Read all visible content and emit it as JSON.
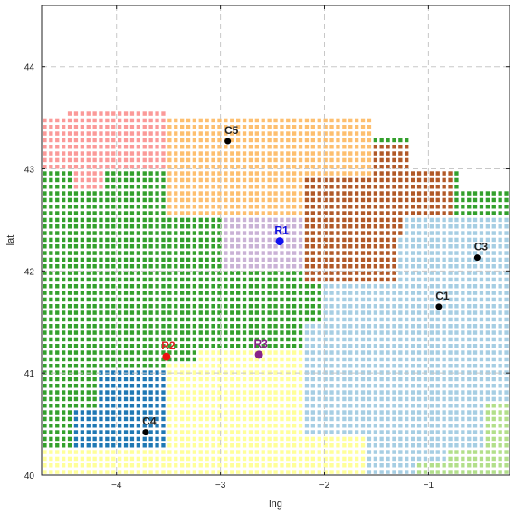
{
  "chart_data": {
    "type": "scatter",
    "title": "",
    "xlabel": "lng",
    "ylabel": "lat",
    "xlim": [
      -4.72,
      -0.22
    ],
    "ylim": [
      40.0,
      44.6
    ],
    "xticks": [
      -4,
      -3,
      -2,
      -1
    ],
    "yticks": [
      40,
      41,
      42,
      43,
      44
    ],
    "grid": true,
    "cell_grid": {
      "dx": 0.06,
      "dy": 0.065,
      "lng_start": -4.69,
      "lat_start": 40.03,
      "cols": 75,
      "rows": 55
    },
    "points": [
      {
        "label": "C1",
        "lng": -0.9,
        "lat": 41.65,
        "color": "#000000",
        "label_color": "#222222",
        "size": 3.5
      },
      {
        "label": "C3",
        "lng": -0.53,
        "lat": 42.13,
        "color": "#000000",
        "label_color": "#222222",
        "size": 3.5
      },
      {
        "label": "C4",
        "lng": -3.72,
        "lat": 40.42,
        "color": "#000000",
        "label_color": "#222222",
        "size": 3.5
      },
      {
        "label": "C5",
        "lng": -2.93,
        "lat": 43.27,
        "color": "#000000",
        "label_color": "#222222",
        "size": 3.5
      },
      {
        "label": "R1",
        "lng": -2.43,
        "lat": 42.29,
        "color": "#1010f0",
        "label_color": "#1010e0",
        "size": 4.5
      },
      {
        "label": "R2",
        "lng": -3.52,
        "lat": 41.16,
        "color": "#ee1111",
        "label_color": "#dd2222",
        "size": 4.5
      },
      {
        "label": "R3",
        "lng": -2.63,
        "lat": 41.18,
        "color": "#882288",
        "label_color": "#882288",
        "size": 4.5
      }
    ],
    "region_colors": {
      "C1": "#a6cee3",
      "C2": "#b2df8a",
      "C3": "#a6cee3",
      "C4": "#1f78b4",
      "C5": "#fdbf6f",
      "R1": "#cab2d6",
      "R2": "#33a02c",
      "R3": "#ffff99",
      "R4": "#b15928",
      "R5": "#fb9a99"
    }
  }
}
